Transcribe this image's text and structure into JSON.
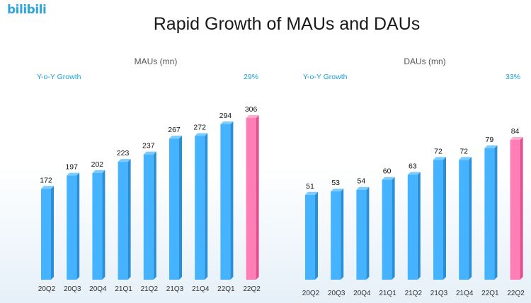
{
  "logo": {
    "text": "bilibili",
    "color": "#2fa5dc"
  },
  "title": "Rapid Growth of MAUs and DAUs",
  "colors": {
    "blue": "#45b3ff",
    "blue_side": "#2a8fd6",
    "blue_top": "#7ccbff",
    "pink": "#ff7eb6",
    "pink_side": "#e0508f",
    "pink_top": "#ffabd0",
    "growth": "#1aa3d8"
  },
  "chart_data": [
    {
      "type": "bar",
      "title": "MAUs (mn)",
      "categories": [
        "20Q2",
        "20Q3",
        "20Q4",
        "21Q1",
        "21Q2",
        "21Q3",
        "21Q4",
        "22Q1",
        "22Q2"
      ],
      "values": [
        172,
        197,
        202,
        223,
        237,
        267,
        272,
        294,
        306
      ],
      "highlight_index": 8,
      "growth_label": "Y-o-Y Growth",
      "growth_value": "29%"
    },
    {
      "type": "bar",
      "title": "DAUs (mn)",
      "categories": [
        "20Q2",
        "20Q3",
        "20Q4",
        "21Q1",
        "21Q2",
        "21Q3",
        "21Q4",
        "22Q1",
        "22Q2"
      ],
      "values": [
        51,
        53,
        54,
        60,
        63,
        72,
        72,
        79,
        84
      ],
      "highlight_index": 8,
      "growth_label": "Y-o-Y Growth",
      "growth_value": "33%"
    }
  ]
}
